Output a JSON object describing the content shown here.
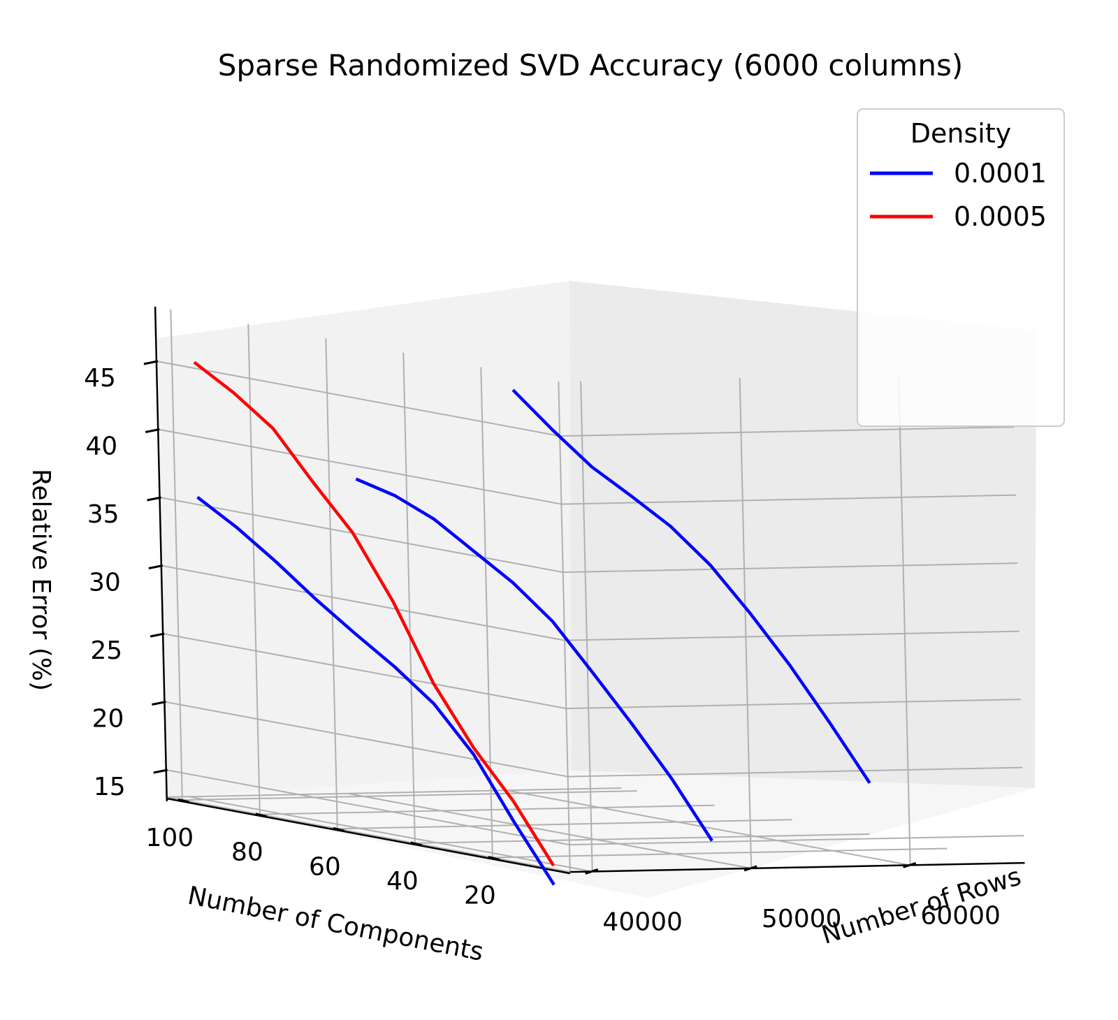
{
  "chart_data": {
    "type": "line",
    "projection": "3d",
    "title": "Sparse Randomized SVD Accuracy (6000 columns)",
    "xlabel": "Number of Components",
    "ylabel": "Number of Rows",
    "zlabel": "Relative Error (%)",
    "x_ticks": [
      20,
      40,
      60,
      80,
      100
    ],
    "y_ticks": [
      40000,
      50000,
      60000
    ],
    "z_ticks": [
      15,
      20,
      25,
      30,
      35,
      40,
      45
    ],
    "x": [
      10,
      20,
      30,
      40,
      50,
      60,
      70,
      80,
      90,
      100
    ],
    "rows": [
      40000,
      50000,
      60000
    ],
    "legend": {
      "title": "Density",
      "location": "upper right"
    },
    "series": [
      {
        "name": "0.0001",
        "color": "#0000ff",
        "values_by_rows": [
          [
            11.5,
            15.6,
            20.0,
            23.2,
            25.4,
            27.3,
            29.3,
            31.5,
            33.5,
            35.2
          ],
          [
            14.5,
            18.5,
            22.0,
            25.3,
            28.5,
            30.8,
            32.6,
            34.4,
            35.6,
            36.3
          ],
          [
            18.5,
            22.4,
            26.1,
            29.4,
            32.4,
            34.7,
            36.4,
            38.0,
            40.2,
            42.6
          ]
        ]
      },
      {
        "name": "0.0005",
        "color": "#ff0000",
        "values_by_rows": [
          [
            12.9,
            17.1,
            20.5,
            24.7,
            30.2,
            34.7,
            37.9,
            41.3,
            43.4,
            45.1
          ]
        ]
      }
    ]
  }
}
